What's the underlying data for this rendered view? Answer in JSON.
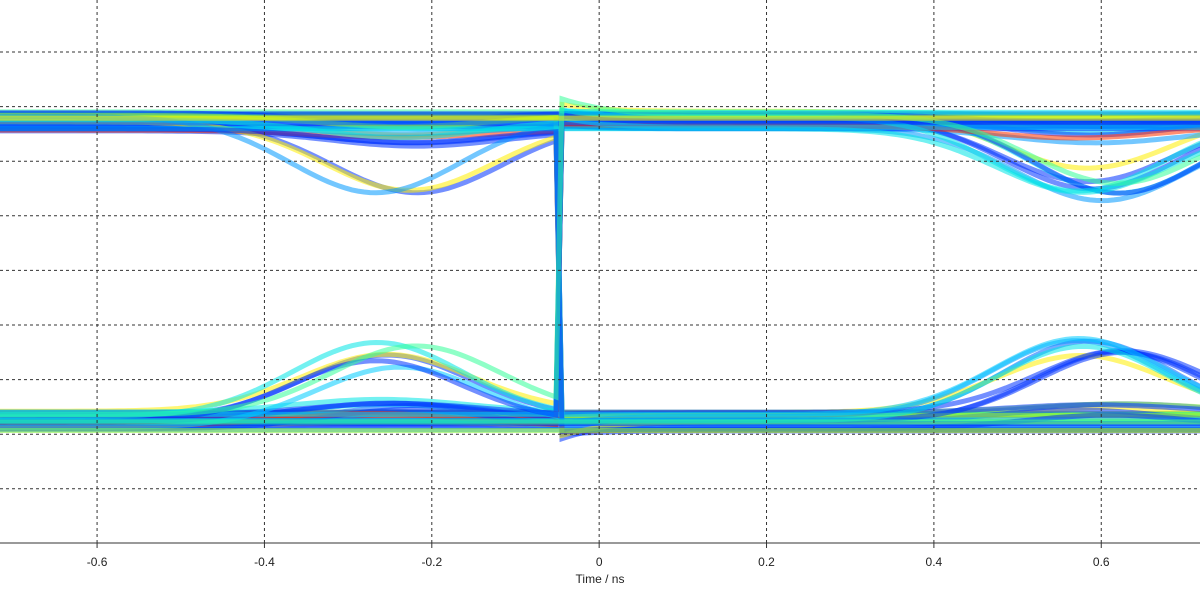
{
  "chart_data": {
    "type": "eye",
    "x_label": "Time / ns",
    "xlim": [
      -0.716,
      0.718
    ],
    "xticks": [
      -0.6,
      -0.4,
      -0.2,
      0,
      0.2,
      0.4,
      0.6
    ],
    "grid": true
  }
}
